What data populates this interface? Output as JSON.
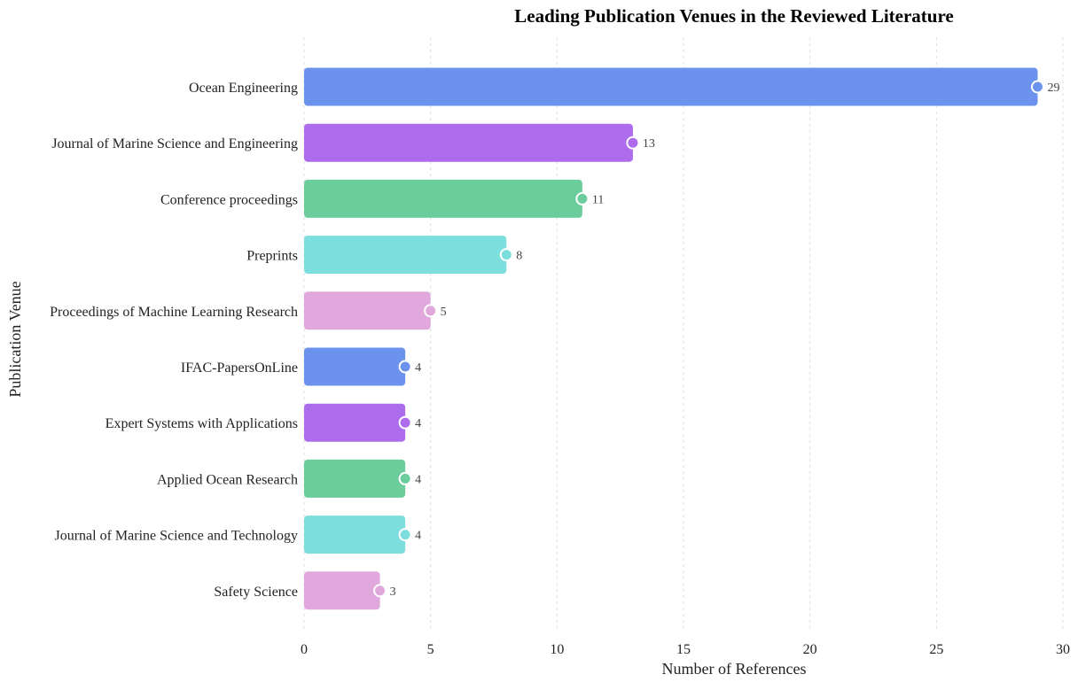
{
  "chart_data": {
    "type": "bar",
    "orientation": "horizontal",
    "title": "Leading Publication Venues in the Reviewed Literature",
    "xlabel": "Number of References",
    "ylabel": "Publication Venue",
    "xlim": [
      0,
      30
    ],
    "xticks": [
      0,
      5,
      10,
      15,
      20,
      25,
      30
    ],
    "grid": "vertical dashed",
    "legend": "none",
    "categories": [
      "Ocean Engineering",
      "Journal of Marine Science and Engineering",
      "Conference proceedings",
      "Preprints",
      "Proceedings of Machine Learning Research",
      "IFAC-PapersOnLine",
      "Expert Systems with Applications",
      "Applied Ocean Research",
      "Journal of Marine Science and Technology",
      "Safety Science"
    ],
    "values": [
      29,
      13,
      11,
      8,
      5,
      4,
      4,
      4,
      4,
      3
    ],
    "colors": [
      "#6b93ee",
      "#ad6cec",
      "#6bcd9c",
      "#7ddede",
      "#e1a8de",
      "#6b93ee",
      "#ad6cec",
      "#6bcd9c",
      "#7ddede",
      "#e1a8de"
    ]
  }
}
